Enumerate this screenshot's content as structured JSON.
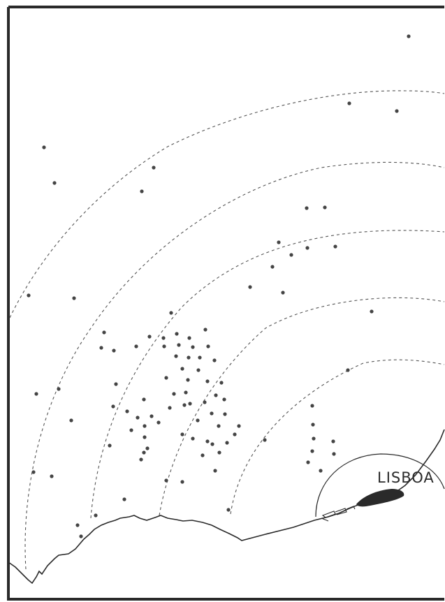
{
  "map": {
    "city_label": "LISBOA",
    "ink_color": "#2a2a2a",
    "dot_color": "#444444",
    "background": "#ffffff"
  }
}
